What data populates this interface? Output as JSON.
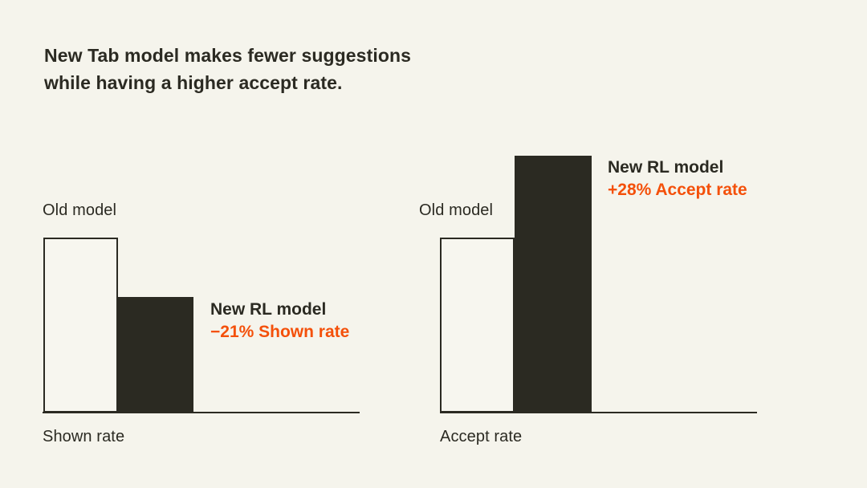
{
  "title": {
    "line1": "New Tab model makes fewer suggestions",
    "line2": "while having a higher accept rate."
  },
  "colors": {
    "background": "#f5f4ec",
    "ink": "#2b2a22",
    "accent": "#f4500a",
    "light_bar_fill": "#f7f6ef"
  },
  "chart_data": [
    {
      "type": "bar",
      "xlabel": "Shown rate",
      "categories": [
        "Old model",
        "New RL model"
      ],
      "values": [
        1.0,
        0.66
      ],
      "values_note": "relative bar heights as drawn; y-axis unlabeled",
      "annotation": {
        "line1": "New RL model",
        "line2": "−21% Shown rate"
      },
      "change": "−21%",
      "grid": false,
      "legend_position": "none"
    },
    {
      "type": "bar",
      "xlabel": "Accept rate",
      "categories": [
        "Old model",
        "New RL model"
      ],
      "values": [
        1.0,
        1.47
      ],
      "values_note": "relative bar heights as drawn; y-axis unlabeled",
      "annotation": {
        "line1": "New RL model",
        "line2": "+28% Accept rate"
      },
      "change": "+28%",
      "grid": false,
      "legend_position": "none"
    }
  ]
}
